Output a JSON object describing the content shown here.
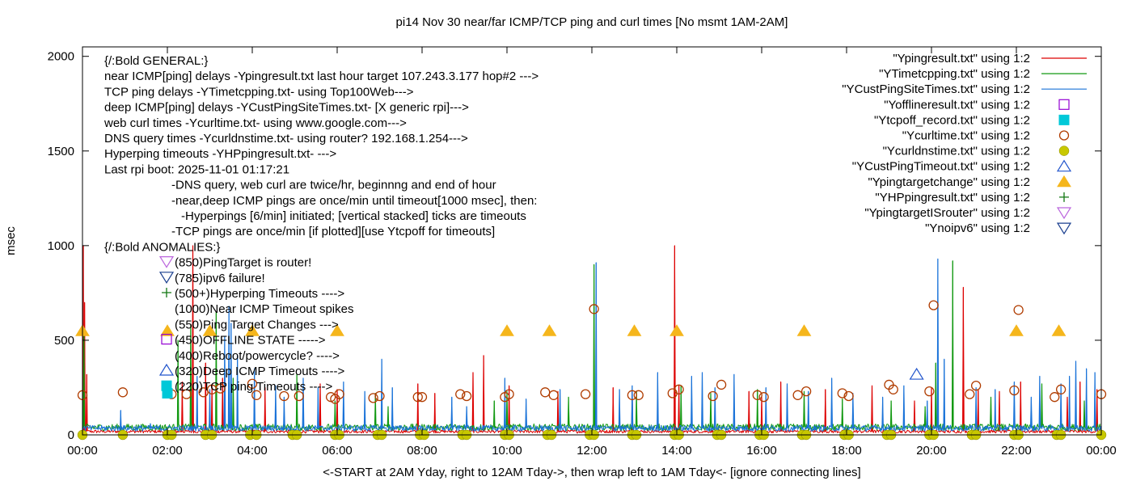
{
  "chart_data": {
    "type": "line",
    "title": "pi14 Nov 30  near/far ICMP/TCP ping and curl times [No msmt 1AM-2AM]",
    "xlabel": "<-START at 2AM Yday, right to 12AM Tday->, then wrap left to 1AM Tday<- [ignore connecting lines]",
    "ylabel": "msec",
    "x_ticks": [
      "00:00",
      "02:00",
      "04:00",
      "06:00",
      "08:00",
      "10:00",
      "12:00",
      "14:00",
      "16:00",
      "18:00",
      "20:00",
      "22:00",
      "00:00"
    ],
    "y_ticks": [
      "0",
      "500",
      "1000",
      "1500",
      "2000"
    ],
    "xlim": [
      0,
      24
    ],
    "ylim": [
      0,
      2050
    ],
    "grid": false,
    "legend_placement": "top-right",
    "legend": [
      {
        "label": "\"Ypingresult.txt\" using 1:2",
        "kind": "line",
        "marker": "",
        "color": "#dd0000"
      },
      {
        "label": "\"YTimetcpping.txt\" using 1:2",
        "kind": "line",
        "marker": "",
        "color": "#119911"
      },
      {
        "label": "\"YCustPingSiteTimes.txt\" using 1:2",
        "kind": "line",
        "marker": "",
        "color": "#1a73d9"
      },
      {
        "label": "\"Yofflineresult.txt\" using 1:2",
        "kind": "point",
        "marker": "square-open",
        "color": "#9400d3"
      },
      {
        "label": "\"Ytcpoff_record.txt\" using 1:2",
        "kind": "point",
        "marker": "square-filled",
        "color": "#00c8d8"
      },
      {
        "label": "\"Ycurltime.txt\" using 1:2",
        "kind": "point",
        "marker": "circle-open",
        "color": "#b03c00"
      },
      {
        "label": "\"Ycurldnstime.txt\" using 1:2",
        "kind": "point",
        "marker": "circle-filled",
        "color": "#c8c800"
      },
      {
        "label": "\"YCustPingTimeout.txt\" using 1:2",
        "kind": "point",
        "marker": "triangle-up-open",
        "color": "#2255cc"
      },
      {
        "label": "\"Ypingtargetchange\" using 1:2",
        "kind": "point",
        "marker": "triangle-up-filled",
        "color": "#f5b61c"
      },
      {
        "label": "\"YHPpingresult.txt\" using 1:2",
        "kind": "point",
        "marker": "plus",
        "color": "#117711"
      },
      {
        "label": "\"YpingtargetISrouter\" using 1:2",
        "kind": "point",
        "marker": "triangle-down-open",
        "color": "#bb66dd"
      },
      {
        "label": "\"Ynoipv6\" using 1:2",
        "kind": "point",
        "marker": "triangle-down-open",
        "color": "#1a3f8f"
      }
    ],
    "annotations": [
      {
        "text": "{/:Bold GENERAL:}",
        "indent": 0
      },
      {
        "text": "near ICMP[ping] delays -Ypingresult.txt last hour target 107.243.3.177 hop#2 --->",
        "indent": 0
      },
      {
        "text": "TCP ping delays -YTimetcpping.txt- using Top100Web--->",
        "indent": 0
      },
      {
        "text": "deep ICMP[ping] delays -YCustPingSiteTimes.txt- [X generic rpi]--->",
        "indent": 0
      },
      {
        "text": "web curl times -Ycurltime.txt- using www.google.com--->",
        "indent": 0
      },
      {
        "text": "DNS query times -Ycurldnstime.txt- using router? 192.168.1.254--->",
        "indent": 0
      },
      {
        "text": "Hyperping timeouts -YHPpingresult.txt- --->",
        "indent": 0
      },
      {
        "text": "Last rpi boot: 2025-11-01 01:17:21",
        "indent": 0
      },
      {
        "text": "-DNS query, web curl are twice/hr, beginnng and end of hour",
        "indent": 1
      },
      {
        "text": "-near,deep ICMP pings are once/min until timeout[1000 msec], then:",
        "indent": 1
      },
      {
        "text": "-Hyperpings [6/min] initiated; [vertical stacked] ticks are timeouts",
        "indent": 2
      },
      {
        "text": "-TCP pings are once/min [if plotted][use Ytcpoff for timeouts]",
        "indent": 1
      },
      {
        "text": "{/:Bold ANOMALIES:}",
        "indent": 0
      }
    ],
    "anomaly_keys": [
      {
        "text": "(850)PingTarget is router!",
        "marker": "triangle-down-open",
        "color": "#bb66dd"
      },
      {
        "text": "(785)ipv6 failure!",
        "marker": "triangle-down-open",
        "color": "#1a3f8f"
      },
      {
        "text": "(500+)Hyperping Timeouts ---->",
        "marker": "plus",
        "color": "#117711"
      },
      {
        "text": "(1000)Near ICMP Timeout spikes",
        "marker": "",
        "color": ""
      },
      {
        "text": "(550)Ping Target Changes --->",
        "marker": "",
        "color": ""
      },
      {
        "text": "(450)OFFLINE STATE ----->",
        "marker": "square-open",
        "color": "#9400d3"
      },
      {
        "text": "(400)Reboot/powercycle? ---->",
        "marker": "",
        "color": ""
      },
      {
        "text": "(320)Deep ICMP Timeouts ---->",
        "marker": "triangle-up-open",
        "color": "#2255cc"
      },
      {
        "text": "(220)TCP ping Timeouts ---->",
        "marker": "square-filled",
        "color": "#00c8d8"
      }
    ],
    "series": [
      {
        "name": "\"Ypingresult.txt\" using 1:2",
        "baseline": 18,
        "spikes": [
          [
            0.02,
            1000
          ],
          [
            0.05,
            700
          ],
          [
            0.1,
            320
          ],
          [
            2.6,
            1000
          ],
          [
            2.35,
            280
          ],
          [
            2.9,
            380
          ],
          [
            3.05,
            260
          ],
          [
            3.3,
            300
          ],
          [
            4.3,
            250
          ],
          [
            5.6,
            270
          ],
          [
            6.0,
            240
          ],
          [
            7.9,
            270
          ],
          [
            8.3,
            220
          ],
          [
            9.2,
            330
          ],
          [
            9.45,
            420
          ],
          [
            10.05,
            260
          ],
          [
            11.2,
            230
          ],
          [
            12.5,
            250
          ],
          [
            12.95,
            230
          ],
          [
            13.95,
            1000
          ],
          [
            14.05,
            260
          ],
          [
            15.7,
            230
          ],
          [
            16.0,
            200
          ],
          [
            16.45,
            280
          ],
          [
            17.5,
            240
          ],
          [
            18.6,
            260
          ],
          [
            19.6,
            180
          ],
          [
            20.0,
            250
          ],
          [
            20.75,
            780
          ],
          [
            21.1,
            240
          ],
          [
            21.6,
            230
          ],
          [
            22.1,
            280
          ],
          [
            23.2,
            200
          ],
          [
            23.5,
            280
          ],
          [
            23.9,
            240
          ]
        ]
      },
      {
        "name": "\"YTimetcpping.txt\" using 1:2",
        "baseline": 40,
        "spikes": [
          [
            0.03,
            560
          ],
          [
            2.25,
            500
          ],
          [
            2.55,
            580
          ],
          [
            3.15,
            650
          ],
          [
            3.55,
            300
          ],
          [
            5.05,
            320
          ],
          [
            5.95,
            180
          ],
          [
            6.9,
            220
          ],
          [
            7.2,
            150
          ],
          [
            9.7,
            180
          ],
          [
            10.0,
            230
          ],
          [
            11.45,
            200
          ],
          [
            12.05,
            900
          ],
          [
            13.05,
            230
          ],
          [
            14.1,
            260
          ],
          [
            14.8,
            220
          ],
          [
            15.9,
            240
          ],
          [
            17.0,
            230
          ],
          [
            17.9,
            190
          ],
          [
            19.05,
            180
          ],
          [
            19.85,
            150
          ],
          [
            20.1,
            380
          ],
          [
            20.5,
            920
          ],
          [
            21.4,
            200
          ],
          [
            22.6,
            270
          ],
          [
            23.6,
            180
          ]
        ]
      },
      {
        "name": "\"YCustPingSiteTimes.txt\" using 1:2",
        "baseline": 35,
        "spikes": [
          [
            0.9,
            130
          ],
          [
            1.6,
            60
          ],
          [
            2.7,
            310
          ],
          [
            3.0,
            240
          ],
          [
            3.35,
            520
          ],
          [
            3.45,
            680
          ],
          [
            3.5,
            590
          ],
          [
            3.65,
            420
          ],
          [
            4.05,
            350
          ],
          [
            4.55,
            260
          ],
          [
            4.75,
            200
          ],
          [
            5.2,
            300
          ],
          [
            5.55,
            250
          ],
          [
            6.15,
            280
          ],
          [
            6.65,
            230
          ],
          [
            7.05,
            400
          ],
          [
            7.3,
            250
          ],
          [
            8.7,
            200
          ],
          [
            9.05,
            150
          ],
          [
            9.95,
            300
          ],
          [
            10.45,
            190
          ],
          [
            11.25,
            240
          ],
          [
            12.1,
            910
          ],
          [
            12.65,
            240
          ],
          [
            12.95,
            260
          ],
          [
            13.55,
            330
          ],
          [
            14.35,
            310
          ],
          [
            14.6,
            330
          ],
          [
            14.9,
            250
          ],
          [
            15.35,
            320
          ],
          [
            16.1,
            250
          ],
          [
            16.6,
            270
          ],
          [
            17.1,
            230
          ],
          [
            17.65,
            300
          ],
          [
            18.15,
            220
          ],
          [
            18.85,
            200
          ],
          [
            19.35,
            260
          ],
          [
            19.9,
            180
          ],
          [
            20.15,
            930
          ],
          [
            20.3,
            400
          ],
          [
            21.05,
            250
          ],
          [
            21.5,
            240
          ],
          [
            21.95,
            280
          ],
          [
            22.35,
            200
          ],
          [
            22.55,
            310
          ],
          [
            23.05,
            270
          ],
          [
            23.25,
            310
          ],
          [
            23.4,
            390
          ],
          [
            23.65,
            350
          ],
          [
            23.85,
            330
          ]
        ]
      }
    ],
    "curl_times": [
      [
        0,
        210
      ],
      [
        0.95,
        225
      ],
      [
        2.1,
        215
      ],
      [
        2.45,
        215
      ],
      [
        2.85,
        225
      ],
      [
        3.05,
        240
      ],
      [
        3.25,
        245
      ],
      [
        4.0,
        270
      ],
      [
        4.1,
        210
      ],
      [
        4.75,
        205
      ],
      [
        5.1,
        205
      ],
      [
        5.85,
        200
      ],
      [
        5.95,
        190
      ],
      [
        6.05,
        215
      ],
      [
        6.85,
        195
      ],
      [
        7.0,
        205
      ],
      [
        7.9,
        200
      ],
      [
        8.0,
        200
      ],
      [
        8.9,
        215
      ],
      [
        9.05,
        205
      ],
      [
        9.95,
        200
      ],
      [
        10.05,
        215
      ],
      [
        10.9,
        225
      ],
      [
        11.1,
        210
      ],
      [
        11.85,
        215
      ],
      [
        12.05,
        665
      ],
      [
        12.95,
        210
      ],
      [
        13.1,
        210
      ],
      [
        13.9,
        220
      ],
      [
        14.05,
        240
      ],
      [
        14.85,
        205
      ],
      [
        15.05,
        265
      ],
      [
        15.9,
        210
      ],
      [
        16.05,
        200
      ],
      [
        16.85,
        210
      ],
      [
        17.05,
        230
      ],
      [
        17.9,
        220
      ],
      [
        18.05,
        205
      ],
      [
        19.0,
        265
      ],
      [
        19.1,
        240
      ],
      [
        19.95,
        230
      ],
      [
        20.05,
        685
      ],
      [
        20.9,
        215
      ],
      [
        21.05,
        260
      ],
      [
        21.95,
        235
      ],
      [
        22.05,
        660
      ],
      [
        22.9,
        200
      ],
      [
        23.05,
        240
      ],
      [
        24.0,
        215
      ]
    ],
    "dns_times": [
      0,
      0.95,
      2.0,
      2.1,
      2.9,
      3.05,
      3.95,
      4.1,
      4.95,
      5.05,
      5.95,
      6.05,
      6.95,
      7.05,
      7.95,
      8.05,
      8.95,
      9.05,
      9.95,
      10.05,
      10.95,
      11.05,
      11.95,
      12.05,
      12.95,
      13.05,
      13.95,
      14.05,
      14.95,
      15.05,
      15.95,
      16.05,
      16.95,
      17.05,
      17.95,
      18.05,
      18.95,
      19.05,
      19.95,
      20.05,
      20.95,
      21.05,
      21.95,
      22.05,
      22.95,
      23.05,
      24.0
    ],
    "ping_target_changes": [
      [
        0.0,
        550
      ],
      [
        2.0,
        550
      ],
      [
        3.0,
        550
      ],
      [
        4.0,
        550
      ],
      [
        6.0,
        550
      ],
      [
        10.0,
        550
      ],
      [
        11.0,
        550
      ],
      [
        13.0,
        550
      ],
      [
        14.0,
        550
      ],
      [
        17.0,
        550
      ],
      [
        22.0,
        550
      ],
      [
        23.0,
        550
      ]
    ],
    "deep_icmp_timeouts": [
      [
        19.65,
        320
      ]
    ],
    "tcp_ping_timeouts": [
      [
        2.0,
        220
      ]
    ]
  }
}
